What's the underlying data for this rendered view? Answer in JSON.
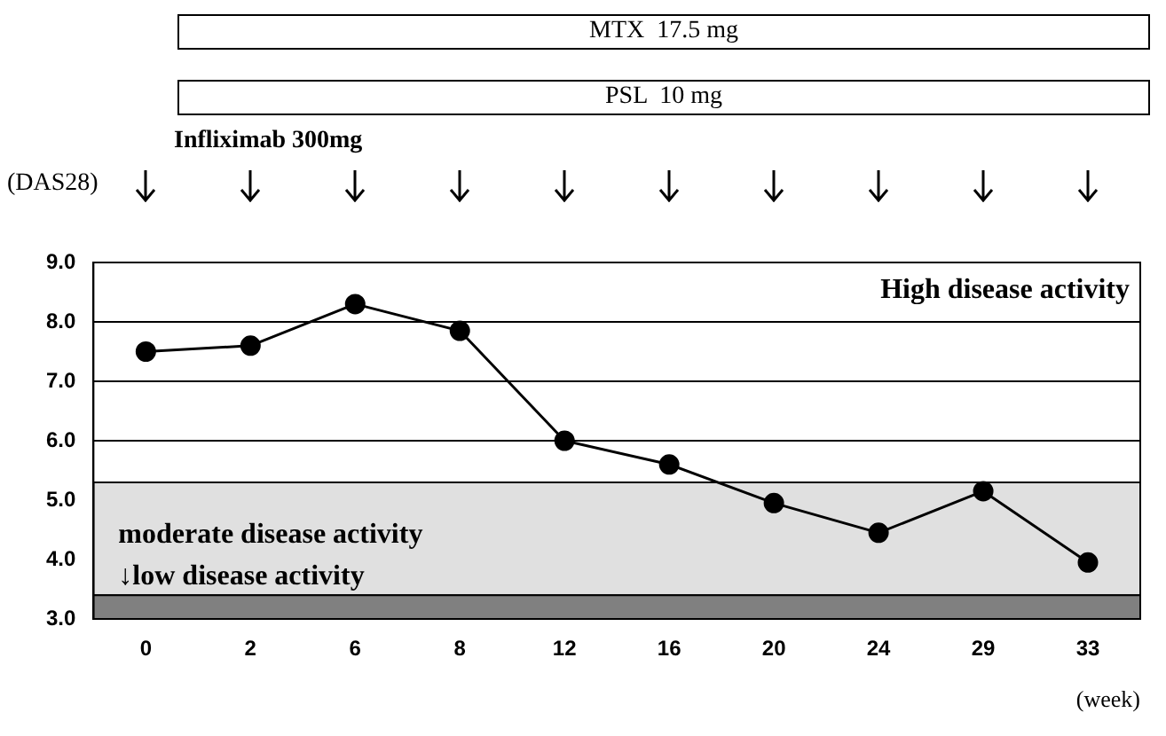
{
  "chart_data": {
    "type": "line",
    "ylabel": "(DAS28)",
    "xlabel": "(week)",
    "categories": [
      "0",
      "2",
      "6",
      "8",
      "12",
      "16",
      "20",
      "24",
      "29",
      "33"
    ],
    "series": [
      {
        "color": "#000000",
        "values": [
          7.5,
          7.6,
          8.3,
          7.85,
          6.0,
          5.6,
          4.95,
          4.45,
          5.15,
          3.95
        ]
      }
    ],
    "ylim": [
      3,
      9
    ],
    "yticks": [
      {
        "value": 3,
        "label": "3.0"
      },
      {
        "value": 4,
        "label": "4.0"
      },
      {
        "value": 5,
        "label": "5.0"
      },
      {
        "value": 6,
        "label": "6.0"
      },
      {
        "value": 7,
        "label": "7.0"
      },
      {
        "value": 8,
        "label": "8.0"
      },
      {
        "value": 9,
        "label": "9.0"
      }
    ],
    "grid": "y",
    "legend": false,
    "marker": "circle",
    "line_style": "solid",
    "bands": [
      {
        "axis": "y",
        "from": 3.4,
        "to": 5.3,
        "label": "moderate disease activity",
        "color": "#e0e0e0"
      },
      {
        "axis": "y",
        "from": 3.0,
        "to": 3.4,
        "label": "↓low disease activity",
        "color": "#808080"
      }
    ],
    "annotations": [
      "MTX  17.5 mg",
      "PSL  10 mg",
      "Infliximab 300mg",
      "High disease activity"
    ]
  }
}
